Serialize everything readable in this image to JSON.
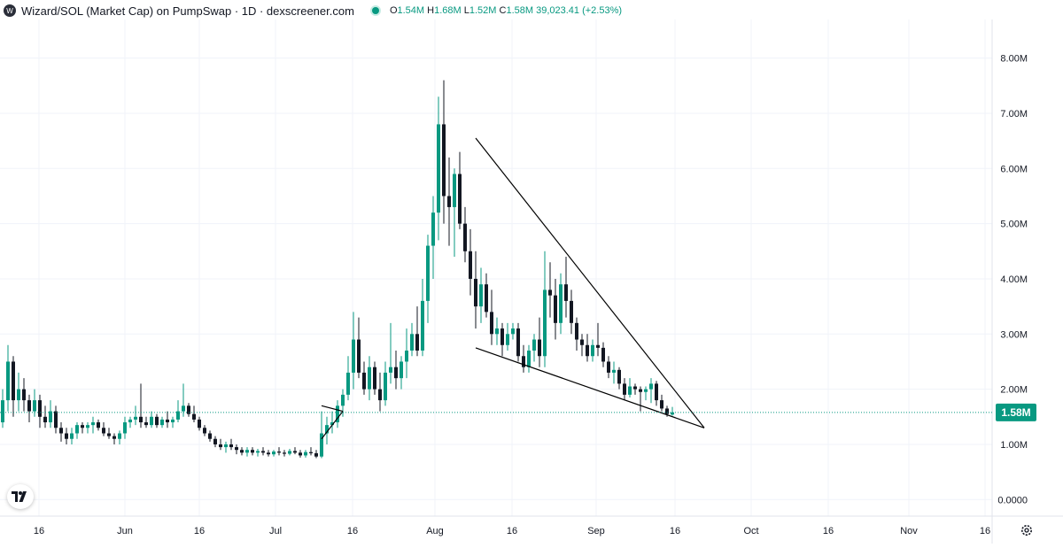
{
  "legend": {
    "title": "Wizard/SOL (Market Cap) on PumpSwap · 1D · dexscreener.com",
    "open_label": "O",
    "open": "1.54M",
    "high_label": "H",
    "high": "1.68M",
    "low_label": "L",
    "low": "1.52M",
    "close_label": "C",
    "close": "1.58M",
    "change": "39,023.41 (+2.53%)"
  },
  "icons": {
    "pair_logo": "wizard-logo-icon",
    "status": "status-dot-icon",
    "tradingview": "tradingview-logo-icon",
    "settings": "gear-icon"
  },
  "colors": {
    "up": "#089981",
    "down": "#131722",
    "price_tag": "#089981",
    "grid": "#f0f3fa",
    "trendline": "#000000"
  },
  "chart_data": {
    "type": "candlestick",
    "title": "Wizard/SOL (Market Cap) on PumpSwap · 1D · dexscreener.com",
    "y_axis_ticks": [
      "8.00M",
      "7.00M",
      "6.00M",
      "5.00M",
      "4.00M",
      "3.00M",
      "2.00M",
      "1.00M",
      "0.0000"
    ],
    "ylim": [
      -0.3,
      8.7
    ],
    "unit": "M",
    "x_axis_ticks": [
      "16",
      "Jun",
      "16",
      "Jul",
      "16",
      "Aug",
      "16",
      "Sep",
      "16",
      "Oct",
      "16",
      "Nov",
      "16"
    ],
    "current_price_label": "1.58M",
    "current_price": 1.58,
    "grid": true,
    "ohlc": [
      [
        1.4,
        2.0,
        1.3,
        1.8
      ],
      [
        1.8,
        2.8,
        1.6,
        2.5
      ],
      [
        2.5,
        2.6,
        1.5,
        1.8
      ],
      [
        1.8,
        2.3,
        1.6,
        2.0
      ],
      [
        2.0,
        2.2,
        1.6,
        1.8
      ],
      [
        1.8,
        1.9,
        1.4,
        1.6
      ],
      [
        1.6,
        2.0,
        1.5,
        1.8
      ],
      [
        1.8,
        1.9,
        1.3,
        1.5
      ],
      [
        1.5,
        1.7,
        1.3,
        1.4
      ],
      [
        1.4,
        1.8,
        1.3,
        1.6
      ],
      [
        1.6,
        1.7,
        1.2,
        1.3
      ],
      [
        1.3,
        1.4,
        1.05,
        1.2
      ],
      [
        1.2,
        1.3,
        1.0,
        1.1
      ],
      [
        1.1,
        1.3,
        1.0,
        1.2
      ],
      [
        1.2,
        1.4,
        1.1,
        1.35
      ],
      [
        1.35,
        1.4,
        1.2,
        1.3
      ],
      [
        1.3,
        1.4,
        1.2,
        1.35
      ],
      [
        1.35,
        1.5,
        1.2,
        1.4
      ],
      [
        1.4,
        1.45,
        1.25,
        1.3
      ],
      [
        1.3,
        1.4,
        1.15,
        1.2
      ],
      [
        1.2,
        1.3,
        1.1,
        1.15
      ],
      [
        1.15,
        1.2,
        1.0,
        1.1
      ],
      [
        1.1,
        1.25,
        1.0,
        1.2
      ],
      [
        1.2,
        1.5,
        1.1,
        1.4
      ],
      [
        1.4,
        1.5,
        1.3,
        1.45
      ],
      [
        1.45,
        1.7,
        1.35,
        1.5
      ],
      [
        1.5,
        2.1,
        1.3,
        1.4
      ],
      [
        1.4,
        1.5,
        1.3,
        1.35
      ],
      [
        1.35,
        1.6,
        1.3,
        1.5
      ],
      [
        1.5,
        1.55,
        1.3,
        1.35
      ],
      [
        1.35,
        1.5,
        1.3,
        1.45
      ],
      [
        1.45,
        1.6,
        1.3,
        1.4
      ],
      [
        1.4,
        1.5,
        1.3,
        1.45
      ],
      [
        1.45,
        1.8,
        1.4,
        1.6
      ],
      [
        1.6,
        2.1,
        1.5,
        1.7
      ],
      [
        1.7,
        1.75,
        1.5,
        1.55
      ],
      [
        1.55,
        1.7,
        1.4,
        1.45
      ],
      [
        1.45,
        1.5,
        1.25,
        1.3
      ],
      [
        1.3,
        1.35,
        1.15,
        1.2
      ],
      [
        1.2,
        1.25,
        1.05,
        1.1
      ],
      [
        1.1,
        1.15,
        0.95,
        1.0
      ],
      [
        1.0,
        1.1,
        0.9,
        0.95
      ],
      [
        0.95,
        1.05,
        0.85,
        1.0
      ],
      [
        1.0,
        1.1,
        0.9,
        0.95
      ],
      [
        0.95,
        1.0,
        0.82,
        0.9
      ],
      [
        0.9,
        0.95,
        0.8,
        0.85
      ],
      [
        0.85,
        0.95,
        0.78,
        0.9
      ],
      [
        0.9,
        0.95,
        0.8,
        0.85
      ],
      [
        0.85,
        0.92,
        0.78,
        0.88
      ],
      [
        0.88,
        0.95,
        0.8,
        0.85
      ],
      [
        0.85,
        0.9,
        0.78,
        0.82
      ],
      [
        0.82,
        0.9,
        0.78,
        0.87
      ],
      [
        0.87,
        0.95,
        0.8,
        0.85
      ],
      [
        0.85,
        0.9,
        0.78,
        0.83
      ],
      [
        0.83,
        0.92,
        0.8,
        0.88
      ],
      [
        0.88,
        0.95,
        0.82,
        0.85
      ],
      [
        0.85,
        0.9,
        0.76,
        0.8
      ],
      [
        0.8,
        0.9,
        0.76,
        0.86
      ],
      [
        0.86,
        0.95,
        0.8,
        0.84
      ],
      [
        0.84,
        0.9,
        0.75,
        0.78
      ],
      [
        0.78,
        1.6,
        0.75,
        1.2
      ],
      [
        1.2,
        1.5,
        1.0,
        1.35
      ],
      [
        1.35,
        1.6,
        1.2,
        1.4
      ],
      [
        1.4,
        1.8,
        1.3,
        1.7
      ],
      [
        1.7,
        2.0,
        1.5,
        1.9
      ],
      [
        1.9,
        2.6,
        1.8,
        2.3
      ],
      [
        2.3,
        3.4,
        2.0,
        2.9
      ],
      [
        2.9,
        3.3,
        2.2,
        2.3
      ],
      [
        2.3,
        2.5,
        1.9,
        2.0
      ],
      [
        2.0,
        2.6,
        1.8,
        2.4
      ],
      [
        2.4,
        2.5,
        1.9,
        2.0
      ],
      [
        2.0,
        2.3,
        1.6,
        1.8
      ],
      [
        1.8,
        2.5,
        1.7,
        2.3
      ],
      [
        2.3,
        3.2,
        2.1,
        2.4
      ],
      [
        2.4,
        2.7,
        2.0,
        2.2
      ],
      [
        2.2,
        2.6,
        2.0,
        2.5
      ],
      [
        2.5,
        3.1,
        2.2,
        2.7
      ],
      [
        2.7,
        3.2,
        2.6,
        3.0
      ],
      [
        3.0,
        3.5,
        2.6,
        2.7
      ],
      [
        2.7,
        4.0,
        2.6,
        3.6
      ],
      [
        3.6,
        4.8,
        3.2,
        4.6
      ],
      [
        4.6,
        5.5,
        4.0,
        5.2
      ],
      [
        5.2,
        7.3,
        4.7,
        6.8
      ],
      [
        6.8,
        7.6,
        5.0,
        5.5
      ],
      [
        5.5,
        6.2,
        4.6,
        5.3
      ],
      [
        5.3,
        6.0,
        4.4,
        5.9
      ],
      [
        5.9,
        6.3,
        4.9,
        5.0
      ],
      [
        5.0,
        5.3,
        4.3,
        4.5
      ],
      [
        4.5,
        4.9,
        3.7,
        4.0
      ],
      [
        4.0,
        4.5,
        3.1,
        3.5
      ],
      [
        3.5,
        4.2,
        3.2,
        3.9
      ],
      [
        3.9,
        4.1,
        3.3,
        3.4
      ],
      [
        3.4,
        3.8,
        2.8,
        3.0
      ],
      [
        3.0,
        3.3,
        2.8,
        3.1
      ],
      [
        3.1,
        3.2,
        2.6,
        2.8
      ],
      [
        2.8,
        3.2,
        2.7,
        3.0
      ],
      [
        3.0,
        3.2,
        2.9,
        3.1
      ],
      [
        3.1,
        3.2,
        2.5,
        2.6
      ],
      [
        2.6,
        2.8,
        2.3,
        2.4
      ],
      [
        2.4,
        2.8,
        2.3,
        2.7
      ],
      [
        2.7,
        3.0,
        2.5,
        2.9
      ],
      [
        2.9,
        3.3,
        2.4,
        2.6
      ],
      [
        2.6,
        4.5,
        2.4,
        3.8
      ],
      [
        3.8,
        4.3,
        3.3,
        3.7
      ],
      [
        3.7,
        4.0,
        2.9,
        3.2
      ],
      [
        3.2,
        4.1,
        3.0,
        3.9
      ],
      [
        3.9,
        4.4,
        3.3,
        3.6
      ],
      [
        3.6,
        3.8,
        3.0,
        3.2
      ],
      [
        3.2,
        3.3,
        2.7,
        2.9
      ],
      [
        2.9,
        3.0,
        2.6,
        2.8
      ],
      [
        2.8,
        3.0,
        2.5,
        2.6
      ],
      [
        2.6,
        2.9,
        2.5,
        2.8
      ],
      [
        2.8,
        3.2,
        2.6,
        2.75
      ],
      [
        2.75,
        2.85,
        2.4,
        2.5
      ],
      [
        2.5,
        2.6,
        2.2,
        2.3
      ],
      [
        2.3,
        2.5,
        2.1,
        2.35
      ],
      [
        2.35,
        2.4,
        2.0,
        2.1
      ],
      [
        2.1,
        2.2,
        1.8,
        1.9
      ],
      [
        1.9,
        2.2,
        1.85,
        2.05
      ],
      [
        2.05,
        2.1,
        1.9,
        2.0
      ],
      [
        2.0,
        2.05,
        1.6,
        1.95
      ],
      [
        1.95,
        2.05,
        1.8,
        2.0
      ],
      [
        2.0,
        2.2,
        1.75,
        2.1
      ],
      [
        2.1,
        2.15,
        1.7,
        1.8
      ],
      [
        1.8,
        1.9,
        1.6,
        1.65
      ],
      [
        1.65,
        1.7,
        1.5,
        1.55
      ],
      [
        1.54,
        1.68,
        1.52,
        1.58
      ]
    ],
    "drawings": [
      {
        "type": "trendline",
        "label": "",
        "points": [
          [
            60,
            1.1
          ],
          [
            64,
            1.6
          ]
        ]
      },
      {
        "type": "trendline",
        "label": "",
        "points": [
          [
            60,
            1.7
          ],
          [
            64,
            1.6
          ]
        ]
      },
      {
        "type": "trendline",
        "label": "",
        "points": [
          [
            89,
            6.55
          ],
          [
            132,
            1.3
          ]
        ]
      },
      {
        "type": "trendline",
        "label": "",
        "points": [
          [
            89,
            2.75
          ],
          [
            132,
            1.3
          ]
        ]
      }
    ]
  }
}
